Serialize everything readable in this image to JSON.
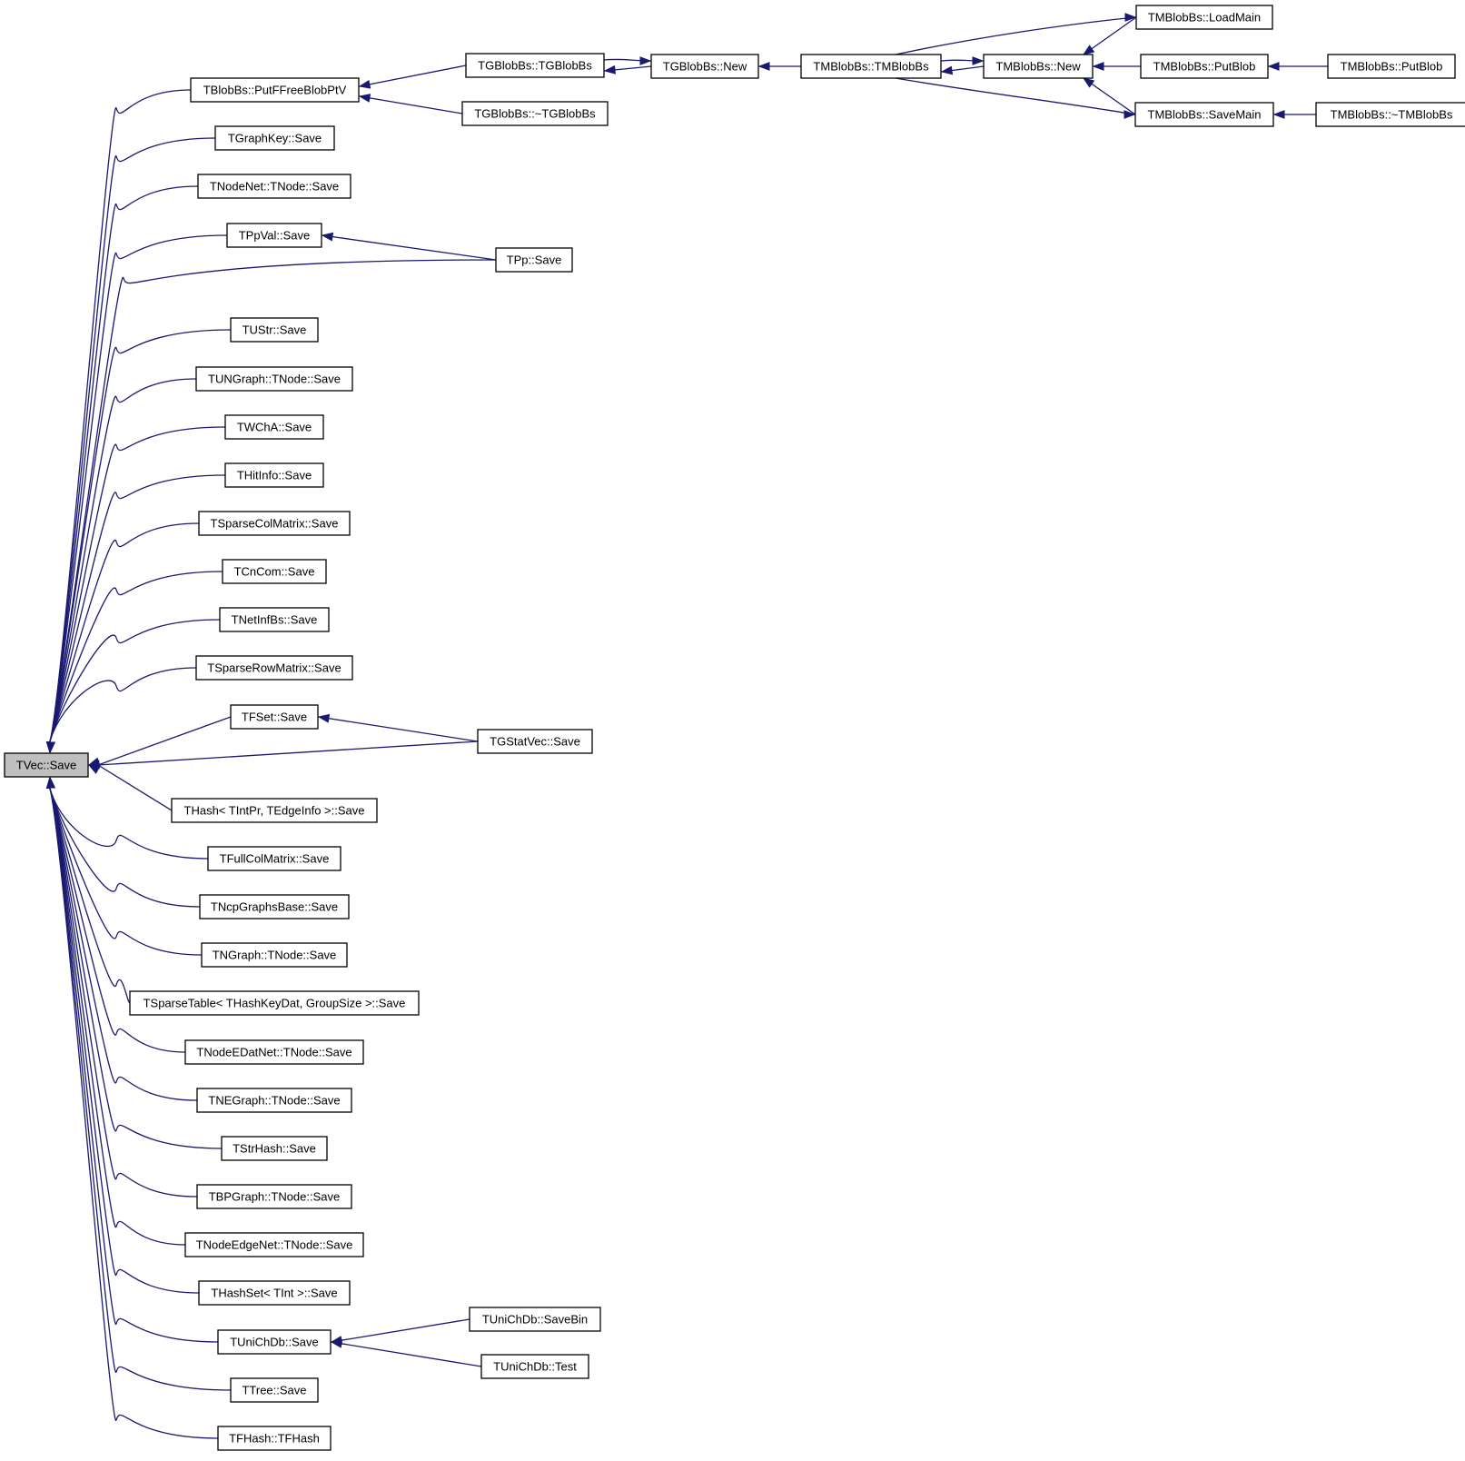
{
  "colors": {
    "edge": "#191970",
    "node_border": "#000000",
    "root_fill": "#bfbfbf",
    "node_fill": "#ffffff"
  },
  "nodes": [
    {
      "id": "tvec_save",
      "label": "TVec::Save"
    },
    {
      "id": "tblobbs_putffreeblobptv",
      "label": "TBlobBs::PutFFreeBlobPtV"
    },
    {
      "id": "tgraphkey_save",
      "label": "TGraphKey::Save"
    },
    {
      "id": "tnodenet_tnode_save",
      "label": "TNodeNet::TNode::Save"
    },
    {
      "id": "tppval_save",
      "label": "TPpVal::Save"
    },
    {
      "id": "tustr_save",
      "label": "TUStr::Save"
    },
    {
      "id": "tungraph_tnode_save",
      "label": "TUNGraph::TNode::Save"
    },
    {
      "id": "twcha_save",
      "label": "TWChA::Save"
    },
    {
      "id": "thitinfo_save",
      "label": "THitInfo::Save"
    },
    {
      "id": "tsparsecolmatrix_save",
      "label": "TSparseColMatrix::Save"
    },
    {
      "id": "tcncom_save",
      "label": "TCnCom::Save"
    },
    {
      "id": "tnetinfbs_save",
      "label": "TNetInfBs::Save"
    },
    {
      "id": "tsparserowmatrix_save",
      "label": "TSparseRowMatrix::Save"
    },
    {
      "id": "tfset_save",
      "label": "TFSet::Save"
    },
    {
      "id": "thash_tintpr_save",
      "label": "THash< TIntPr, TEdgeInfo >::Save"
    },
    {
      "id": "tfullcolmatrix_save",
      "label": "TFullColMatrix::Save"
    },
    {
      "id": "tncpgraphsbase_save",
      "label": "TNcpGraphsBase::Save"
    },
    {
      "id": "tngraph_tnode_save",
      "label": "TNGraph::TNode::Save"
    },
    {
      "id": "tsparsetable_save",
      "label": "TSparseTable< THashKeyDat, GroupSize >::Save"
    },
    {
      "id": "tnodeedatnet_tnode_save",
      "label": "TNodeEDatNet::TNode::Save"
    },
    {
      "id": "tnegraph_tnode_save",
      "label": "TNEGraph::TNode::Save"
    },
    {
      "id": "tstrhash_save",
      "label": "TStrHash::Save"
    },
    {
      "id": "tbpgraph_tnode_save",
      "label": "TBPGraph::TNode::Save"
    },
    {
      "id": "tnodeedgenet_tnode_save",
      "label": "TNodeEdgeNet::TNode::Save"
    },
    {
      "id": "thashset_tint_save",
      "label": "THashSet< TInt >::Save"
    },
    {
      "id": "tunichdb_save",
      "label": "TUniChDb::Save"
    },
    {
      "id": "ttree_save",
      "label": "TTree::Save"
    },
    {
      "id": "tfhash_tfhash",
      "label": "TFHash::TFHash"
    },
    {
      "id": "tgblobbs_tgblobbs",
      "label": "TGBlobBs::TGBlobBs"
    },
    {
      "id": "tgblobbs_dtor",
      "label": "TGBlobBs::~TGBlobBs"
    },
    {
      "id": "tpp_save",
      "label": "TPp::Save"
    },
    {
      "id": "tgstatvec_save",
      "label": "TGStatVec::Save"
    },
    {
      "id": "tunichdb_savebin",
      "label": "TUniChDb::SaveBin"
    },
    {
      "id": "tunichdb_test",
      "label": "TUniChDb::Test"
    },
    {
      "id": "tgblobbs_new",
      "label": "TGBlobBs::New"
    },
    {
      "id": "tmblobbs_tmblobbs",
      "label": "TMBlobBs::TMBlobBs"
    },
    {
      "id": "tmblobbs_new",
      "label": "TMBlobBs::New"
    },
    {
      "id": "tmblobbs_loadmain",
      "label": "TMBlobBs::LoadMain"
    },
    {
      "id": "tmblobbs_putblob_1",
      "label": "TMBlobBs::PutBlob"
    },
    {
      "id": "tmblobbs_savemain",
      "label": "TMBlobBs::SaveMain"
    },
    {
      "id": "tmblobbs_putblob_2",
      "label": "TMBlobBs::PutBlob"
    },
    {
      "id": "tmblobbs_dtor",
      "label": "TMBlobBs::~TMBlobBs"
    }
  ],
  "edges": [
    {
      "from": "tblobbs_putffreeblobptv",
      "to": "tvec_save"
    },
    {
      "from": "tgraphkey_save",
      "to": "tvec_save"
    },
    {
      "from": "tnodenet_tnode_save",
      "to": "tvec_save"
    },
    {
      "from": "tppval_save",
      "to": "tvec_save"
    },
    {
      "from": "tpp_save",
      "to": "tvec_save"
    },
    {
      "from": "tustr_save",
      "to": "tvec_save"
    },
    {
      "from": "tungraph_tnode_save",
      "to": "tvec_save"
    },
    {
      "from": "twcha_save",
      "to": "tvec_save"
    },
    {
      "from": "thitinfo_save",
      "to": "tvec_save"
    },
    {
      "from": "tsparsecolmatrix_save",
      "to": "tvec_save"
    },
    {
      "from": "tcncom_save",
      "to": "tvec_save"
    },
    {
      "from": "tnetinfbs_save",
      "to": "tvec_save"
    },
    {
      "from": "tsparserowmatrix_save",
      "to": "tvec_save"
    },
    {
      "from": "tfset_save",
      "to": "tvec_save"
    },
    {
      "from": "tgstatvec_save",
      "to": "tvec_save"
    },
    {
      "from": "thash_tintpr_save",
      "to": "tvec_save"
    },
    {
      "from": "tfullcolmatrix_save",
      "to": "tvec_save"
    },
    {
      "from": "tncpgraphsbase_save",
      "to": "tvec_save"
    },
    {
      "from": "tngraph_tnode_save",
      "to": "tvec_save"
    },
    {
      "from": "tsparsetable_save",
      "to": "tvec_save"
    },
    {
      "from": "tnodeedatnet_tnode_save",
      "to": "tvec_save"
    },
    {
      "from": "tnegraph_tnode_save",
      "to": "tvec_save"
    },
    {
      "from": "tstrhash_save",
      "to": "tvec_save"
    },
    {
      "from": "tbpgraph_tnode_save",
      "to": "tvec_save"
    },
    {
      "from": "tnodeedgenet_tnode_save",
      "to": "tvec_save"
    },
    {
      "from": "thashset_tint_save",
      "to": "tvec_save"
    },
    {
      "from": "tunichdb_save",
      "to": "tvec_save"
    },
    {
      "from": "ttree_save",
      "to": "tvec_save"
    },
    {
      "from": "tfhash_tfhash",
      "to": "tvec_save"
    },
    {
      "from": "tgblobbs_tgblobbs",
      "to": "tblobbs_putffreeblobptv"
    },
    {
      "from": "tgblobbs_dtor",
      "to": "tblobbs_putffreeblobptv"
    },
    {
      "from": "tpp_save",
      "to": "tppval_save"
    },
    {
      "from": "tgstatvec_save",
      "to": "tfset_save"
    },
    {
      "from": "tunichdb_savebin",
      "to": "tunichdb_save"
    },
    {
      "from": "tunichdb_test",
      "to": "tunichdb_save"
    },
    {
      "from": "tgblobbs_new",
      "to": "tgblobbs_tgblobbs"
    },
    {
      "from": "tgblobbs_tgblobbs",
      "to": "tgblobbs_new"
    },
    {
      "from": "tmblobbs_tmblobbs",
      "to": "tgblobbs_new"
    },
    {
      "from": "tmblobbs_new",
      "to": "tmblobbs_tmblobbs"
    },
    {
      "from": "tmblobbs_tmblobbs",
      "to": "tmblobbs_new"
    },
    {
      "from": "tmblobbs_loadmain",
      "to": "tmblobbs_new"
    },
    {
      "from": "tmblobbs_putblob_1",
      "to": "tmblobbs_new"
    },
    {
      "from": "tmblobbs_savemain",
      "to": "tmblobbs_new"
    },
    {
      "from": "tmblobbs_tmblobbs",
      "to": "tmblobbs_loadmain"
    },
    {
      "from": "tmblobbs_tmblobbs",
      "to": "tmblobbs_savemain"
    },
    {
      "from": "tmblobbs_putblob_2",
      "to": "tmblobbs_putblob_1"
    },
    {
      "from": "tmblobbs_dtor",
      "to": "tmblobbs_savemain"
    }
  ]
}
